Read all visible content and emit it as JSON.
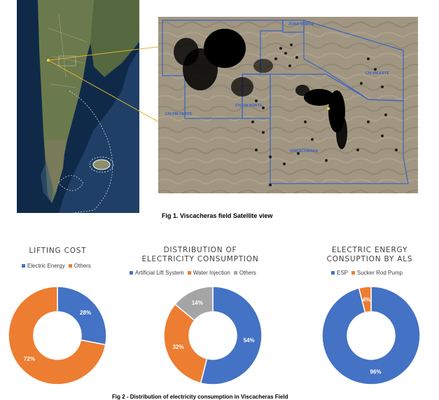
{
  "figure1": {
    "caption": "Fig 1. Viscacheras field Satellite view",
    "map_labels": [
      "ZONA NORTE",
      "CN-VM ESTE",
      "CN-VM NORTE",
      "VISCACHERAS",
      "CN-VM OESTE"
    ]
  },
  "figure2": {
    "caption": "Fig 2 - Distribution of electricity consumption in Viscacheras Field"
  },
  "colors": {
    "blue": "#4472C4",
    "orange": "#ED7D31",
    "gray": "#A5A5A5"
  },
  "chart_data": [
    {
      "type": "pie",
      "title": "LIFTING COST",
      "categories": [
        "Electric Energy",
        "Others"
      ],
      "values": [
        28,
        72
      ],
      "labels": [
        "28%",
        "72%"
      ],
      "colors": [
        "#4472C4",
        "#ED7D31"
      ],
      "legend_placement": "top"
    },
    {
      "type": "pie",
      "title": "DISTRIBUTION OF ELECTRICITY CONSUMPTION",
      "categories": [
        "Artificial Lift System",
        "Water Injection",
        "Others"
      ],
      "values": [
        54,
        32,
        14
      ],
      "labels": [
        "54%",
        "32%",
        "14%"
      ],
      "colors": [
        "#4472C4",
        "#ED7D31",
        "#A5A5A5"
      ],
      "legend_placement": "top"
    },
    {
      "type": "pie",
      "title": "ELECTRIC ENERGY CONSUPTION BY ALS",
      "categories": [
        "ESP",
        "Sucker Rod Pump"
      ],
      "values": [
        96,
        4
      ],
      "labels": [
        "96%",
        "4%"
      ],
      "colors": [
        "#4472C4",
        "#ED7D31"
      ],
      "legend_placement": "top"
    }
  ]
}
